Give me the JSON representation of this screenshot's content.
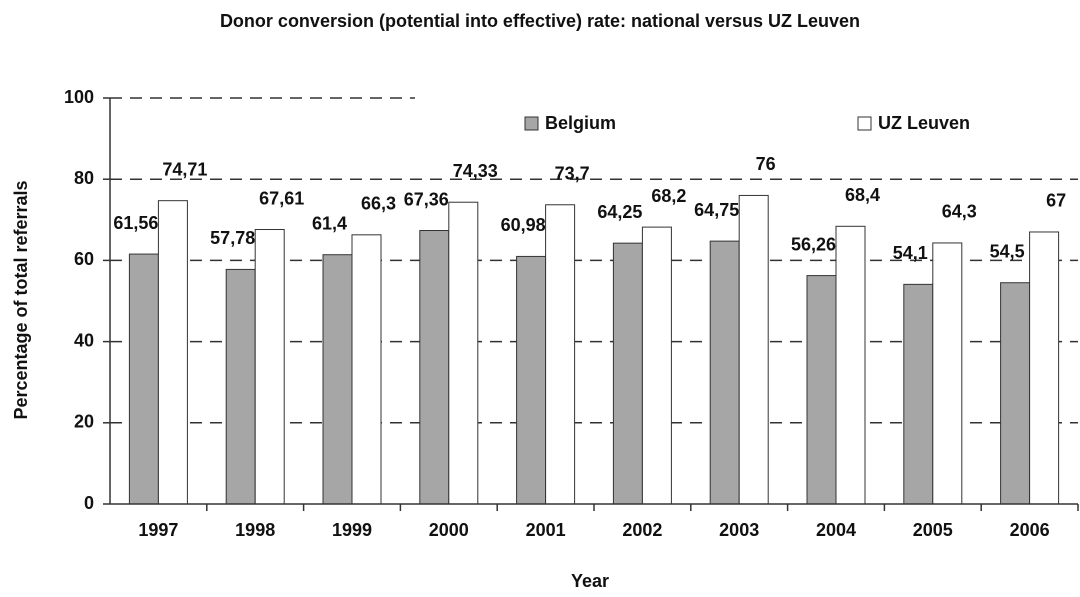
{
  "chart_data": {
    "type": "bar",
    "title": "Donor conversion (potential into effective) rate: national versus UZ Leuven",
    "xlabel": "Year",
    "ylabel": "Percentage of total referrals",
    "categories": [
      "1997",
      "1998",
      "1999",
      "2000",
      "2001",
      "2002",
      "2003",
      "2004",
      "2005",
      "2006"
    ],
    "series": [
      {
        "name": "Belgium",
        "color": "#a6a6a6",
        "values": [
          61.56,
          57.78,
          61.4,
          67.36,
          60.98,
          64.25,
          64.75,
          56.26,
          54.1,
          54.5
        ],
        "value_labels": [
          "61,56",
          "57,78",
          "61,4",
          "67,36",
          "60,98",
          "64,25",
          "64,75",
          "56,26",
          "54,1",
          "54,5"
        ]
      },
      {
        "name": "UZ Leuven",
        "color": "#ffffff",
        "values": [
          74.71,
          67.61,
          66.3,
          74.33,
          73.7,
          68.2,
          76,
          68.4,
          64.3,
          67
        ],
        "value_labels": [
          "74,71",
          "67,61",
          "66,3",
          "74,33",
          "73,7",
          "68,2",
          "76",
          "68,4",
          "64,3",
          "67"
        ]
      }
    ],
    "ylim": [
      0,
      100
    ],
    "yticks": [
      0,
      20,
      40,
      60,
      80,
      100
    ],
    "grid": true
  }
}
